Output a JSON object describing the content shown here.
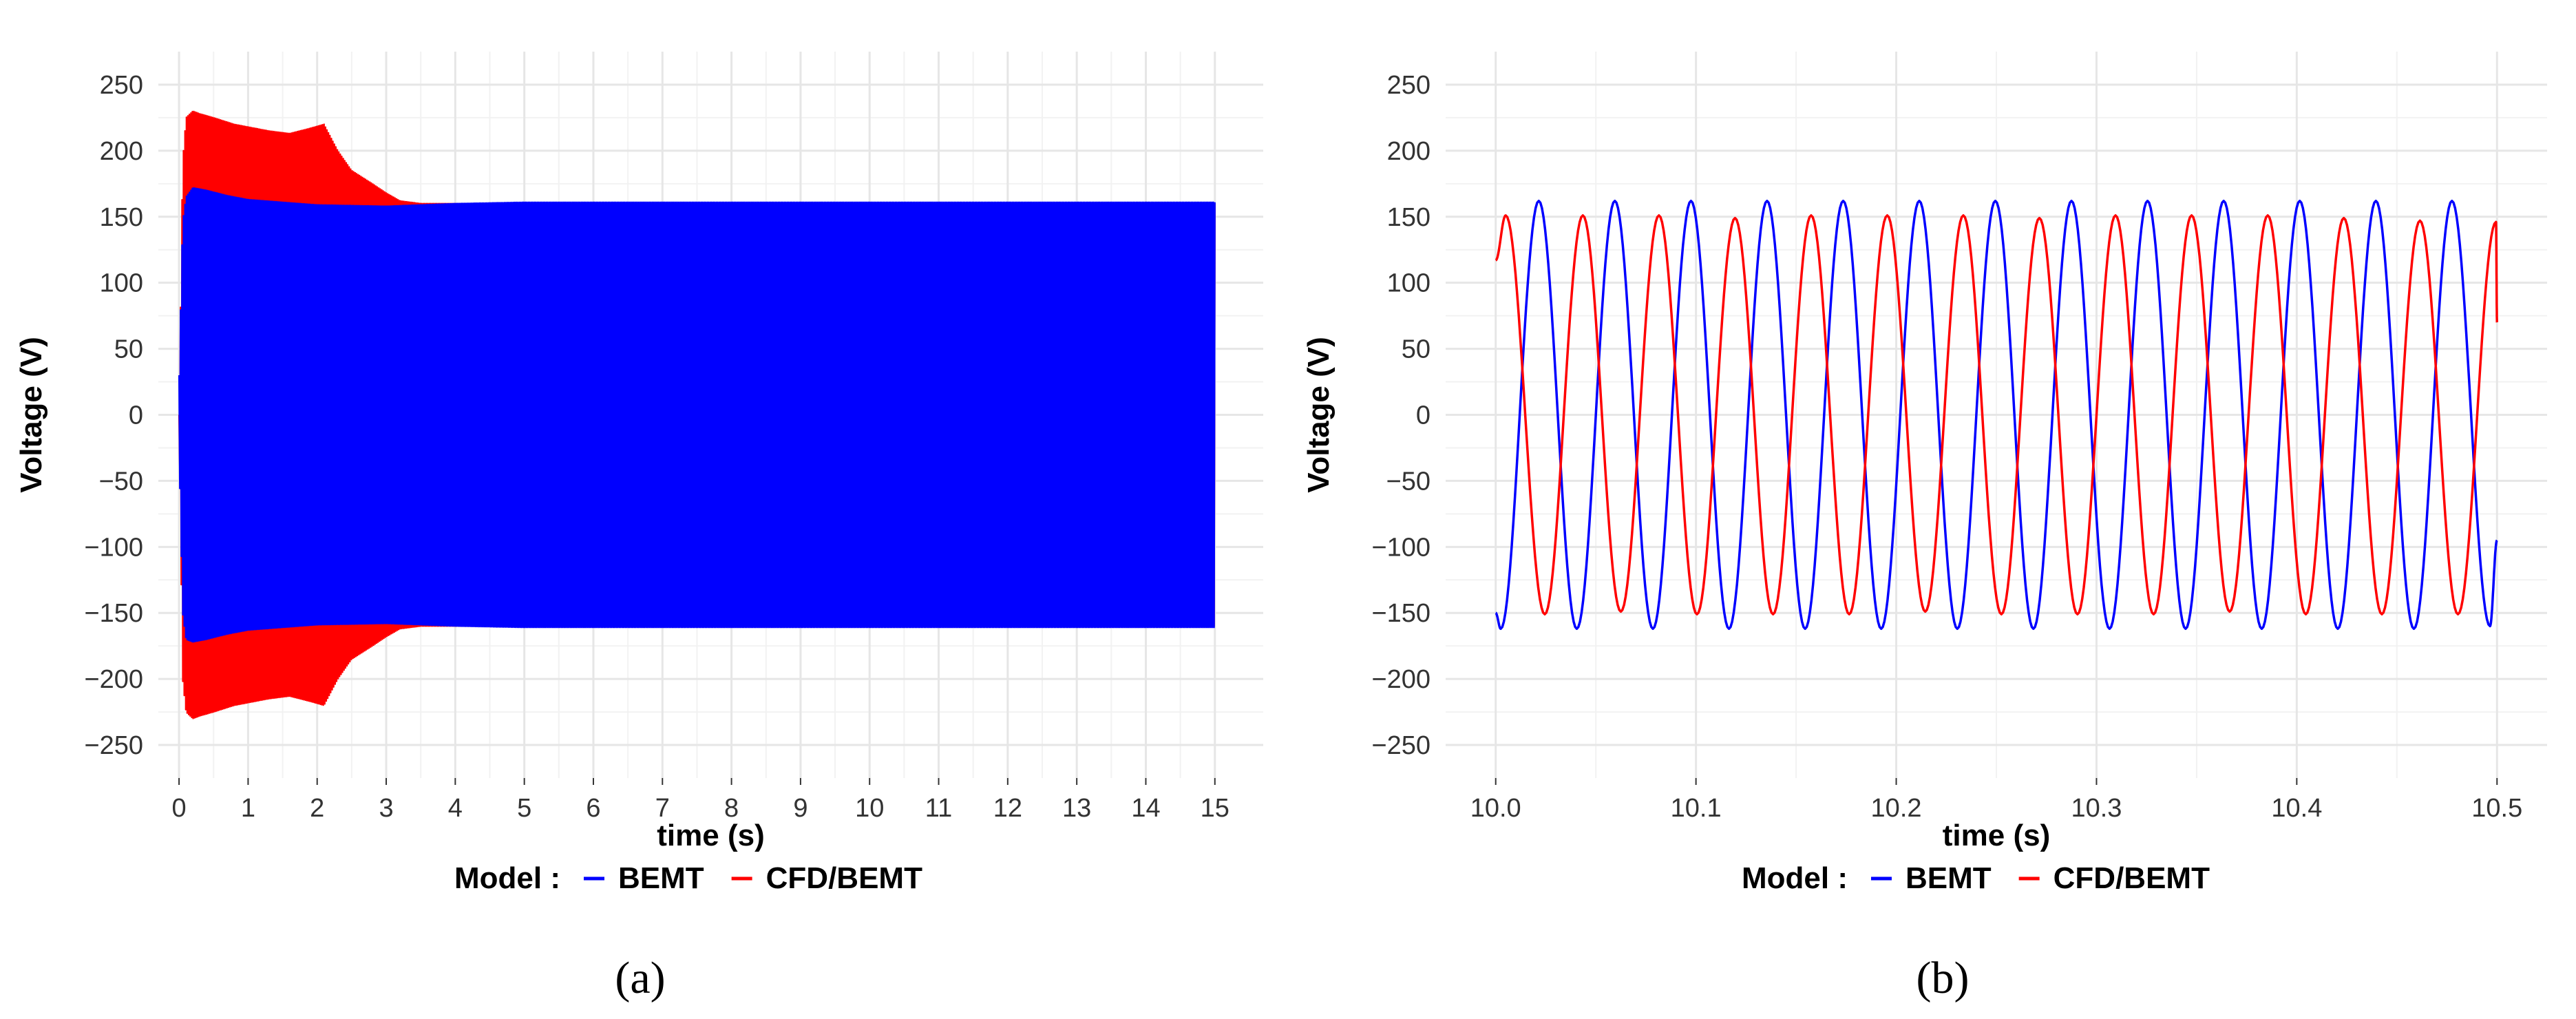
{
  "colors": {
    "BEMT": "#0000ff",
    "CFD/BEMT": "#ff0000"
  },
  "legend": {
    "title": "Model :",
    "entries": [
      "BEMT",
      "CFD/BEMT"
    ]
  },
  "chart_data": [
    {
      "type": "line",
      "caption": "(a)",
      "xlabel": "time (s)",
      "ylabel": "Voltage (V)",
      "xlim": [
        -0.3,
        15.7
      ],
      "ylim": [
        -275,
        275
      ],
      "xticks": [
        0,
        1,
        2,
        3,
        4,
        5,
        6,
        7,
        8,
        9,
        10,
        11,
        12,
        13,
        14,
        15
      ],
      "xtick_labels": [
        "0",
        "1",
        "2",
        "3",
        "4",
        "5",
        "6",
        "7",
        "8",
        "9",
        "10",
        "11",
        "12",
        "13",
        "14",
        "15"
      ],
      "yticks": [
        -250,
        -200,
        -150,
        -100,
        -50,
        0,
        50,
        100,
        150,
        200,
        250
      ],
      "ytick_labels": [
        "−250",
        "−200",
        "−150",
        "−100",
        "−50",
        "0",
        "50",
        "100",
        "150",
        "200",
        "250"
      ],
      "grid": true,
      "legend_position": "bottom",
      "series": [
        {
          "name": "CFD/BEMT",
          "x": [
            0.0,
            0.05,
            0.1,
            0.2,
            0.3,
            0.5,
            0.8,
            1.0,
            1.3,
            1.6,
            1.9,
            2.1,
            2.3,
            2.5,
            2.8,
            3.0,
            3.2,
            3.5,
            4.0,
            5.0,
            8.0,
            12.0,
            15.0
          ],
          "upper": [
            0,
            190,
            225,
            230,
            228,
            225,
            220,
            218,
            215,
            213,
            217,
            220,
            200,
            185,
            175,
            168,
            162,
            160,
            160,
            160,
            160,
            160,
            160
          ],
          "lower": [
            0,
            -200,
            -225,
            -230,
            -228,
            -225,
            -220,
            -218,
            -215,
            -213,
            -217,
            -220,
            -200,
            -185,
            -175,
            -168,
            -162,
            -160,
            -160,
            -160,
            -160,
            -160,
            -160
          ]
        },
        {
          "name": "BEMT",
          "x": [
            0.0,
            0.05,
            0.1,
            0.2,
            0.4,
            0.7,
            1.0,
            1.5,
            2.0,
            3.0,
            4.0,
            5.0,
            8.0,
            12.0,
            15.0
          ],
          "upper": [
            30,
            145,
            165,
            172,
            170,
            166,
            163,
            161,
            159,
            158,
            160,
            161,
            161,
            161,
            161
          ],
          "lower": [
            -30,
            -150,
            -170,
            -172,
            -170,
            -166,
            -163,
            -161,
            -159,
            -158,
            -160,
            -161,
            -161,
            -161,
            -161
          ]
        }
      ]
    },
    {
      "type": "line",
      "caption": "(b)",
      "xlabel": "time (s)",
      "ylabel": "Voltage (V)",
      "xlim": [
        9.975,
        10.525
      ],
      "ylim": [
        -275,
        275
      ],
      "xticks": [
        10.0,
        10.1,
        10.2,
        10.3,
        10.4,
        10.5
      ],
      "xtick_labels": [
        "10.0",
        "10.1",
        "10.2",
        "10.3",
        "10.4",
        "10.5"
      ],
      "yticks": [
        -250,
        -200,
        -150,
        -100,
        -50,
        0,
        50,
        100,
        150,
        200,
        250
      ],
      "ytick_labels": [
        "−250",
        "−200",
        "−150",
        "−100",
        "−50",
        "0",
        "50",
        "100",
        "150",
        "200",
        "250"
      ],
      "grid": true,
      "legend_position": "bottom",
      "series": [
        {
          "name": "BEMT",
          "x": [
            10.0,
            10.0025,
            10.0215,
            10.0405,
            10.0595,
            10.0785,
            10.0975,
            10.1165,
            10.1355,
            10.1545,
            10.1735,
            10.1925,
            10.2115,
            10.2305,
            10.2495,
            10.2685,
            10.2875,
            10.3065,
            10.3255,
            10.3445,
            10.3635,
            10.3825,
            10.4015,
            10.4205,
            10.4395,
            10.4585,
            10.4775,
            10.4965,
            10.5
          ],
          "y": [
            -150,
            -162,
            162,
            -162,
            162,
            -162,
            162,
            -162,
            162,
            -162,
            162,
            -162,
            162,
            -162,
            162,
            -162,
            162,
            -162,
            162,
            -162,
            162,
            -162,
            162,
            -162,
            162,
            -162,
            162,
            -160,
            -95
          ]
        },
        {
          "name": "CFD/BEMT",
          "x": [
            10.0,
            10.005,
            10.0245,
            10.0435,
            10.0625,
            10.0815,
            10.1005,
            10.1195,
            10.1385,
            10.1575,
            10.1765,
            10.1955,
            10.2145,
            10.2335,
            10.2525,
            10.2715,
            10.2905,
            10.3095,
            10.3285,
            10.3475,
            10.3665,
            10.3855,
            10.4045,
            10.4235,
            10.4425,
            10.4615,
            10.4805,
            10.4995,
            10.5
          ],
          "y": [
            117,
            151,
            -151,
            151,
            -149,
            151,
            -151,
            149,
            -151,
            151,
            -151,
            151,
            -149,
            151,
            -151,
            149,
            -151,
            151,
            -151,
            151,
            -149,
            151,
            -151,
            149,
            -151,
            147,
            -151,
            146,
            70
          ]
        }
      ]
    }
  ]
}
